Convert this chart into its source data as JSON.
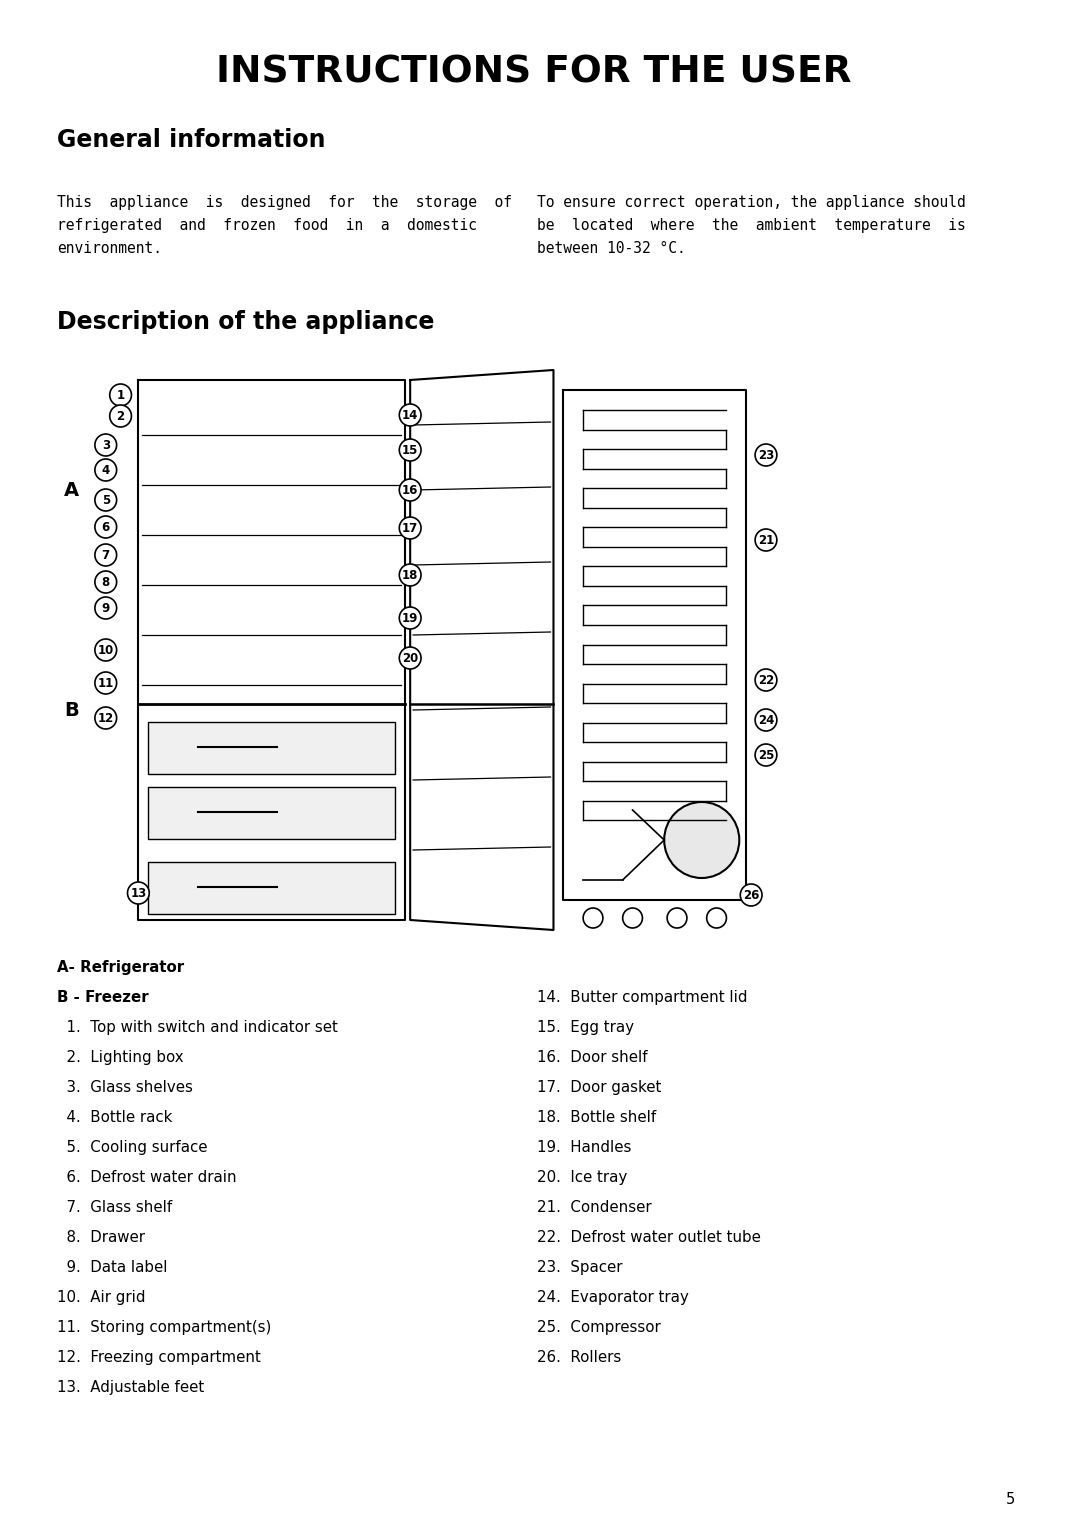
{
  "title": "INSTRUCTIONS FOR THE USER",
  "section1_title": "General information",
  "para1_left": "This  appliance  is  designed  for  the  storage  of\nrefrigerated  and  frozen  food  in  a  domestic\nenvironment.",
  "para1_right": "To ensure correct operation, the appliance should\nbe  located  where  the  ambient  temperature  is\nbetween 10-32 °C.",
  "section2_title": "Description of the appliance",
  "label_A": "A",
  "label_B": "B",
  "left_items": [
    [
      "A- Refrigerator",
      true
    ],
    [
      "B - Freezer",
      true
    ],
    [
      "  1.  Top with switch and indicator set",
      false
    ],
    [
      "  2.  Lighting box",
      false
    ],
    [
      "  3.  Glass shelves",
      false
    ],
    [
      "  4.  Bottle rack",
      false
    ],
    [
      "  5.  Cooling surface",
      false
    ],
    [
      "  6.  Defrost water drain",
      false
    ],
    [
      "  7.  Glass shelf",
      false
    ],
    [
      "  8.  Drawer",
      false
    ],
    [
      "  9.  Data label",
      false
    ],
    [
      "10.  Air grid",
      false
    ],
    [
      "11.  Storing compartment(s)",
      false
    ],
    [
      "12.  Freezing compartment",
      false
    ],
    [
      "13.  Adjustable feet",
      false
    ]
  ],
  "right_items": [
    "14.  Butter compartment lid",
    "15.  Egg tray",
    "16.  Door shelf",
    "17.  Door gasket",
    "18.  Bottle shelf",
    "19.  Handles",
    "20.  Ice tray",
    "21.  Condenser",
    "22.  Defrost water outlet tube",
    "23.  Spacer",
    "24.  Evaporator tray",
    "25.  Compressor",
    "26.  Rollers"
  ],
  "page_number": "5",
  "bg_color": "#ffffff",
  "text_color": "#000000"
}
